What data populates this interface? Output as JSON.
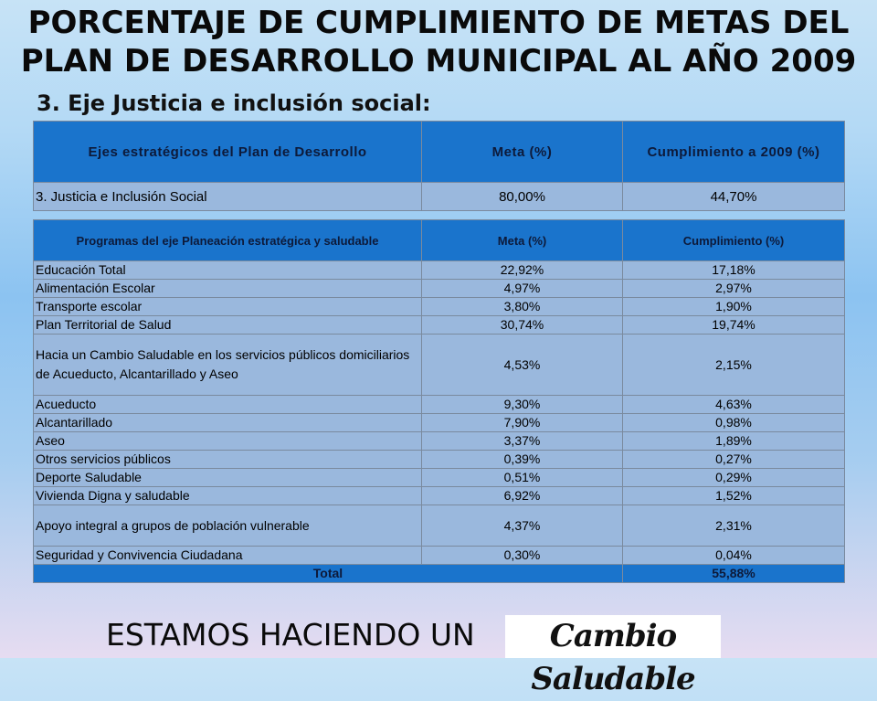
{
  "title_line1": "PORCENTAJE DE CUMPLIMIENTO DE METAS DEL",
  "title_line2": "PLAN DE DESARROLLO MUNICIPAL AL AÑO 2009",
  "subtitle": "3. Eje Justicia e inclusión social:",
  "summary_table": {
    "headers": [
      "Ejes estratégicos del Plan de Desarrollo",
      "Meta (%)",
      "Cumplimiento a 2009 (%)"
    ],
    "row": [
      "3. Justicia e Inclusión Social",
      "80,00%",
      "44,70%"
    ]
  },
  "programs_table": {
    "headers": [
      "Programas del eje Planeación estratégica y saludable",
      "Meta (%)",
      "Cumplimiento (%)"
    ],
    "rows": [
      [
        "Educación Total",
        "22,92%",
        "17,18%"
      ],
      [
        "Alimentación Escolar",
        "4,97%",
        "2,97%"
      ],
      [
        "Transporte escolar",
        "3,80%",
        "1,90%"
      ],
      [
        "Plan Territorial de Salud",
        "30,74%",
        "19,74%"
      ],
      [
        "Hacia un Cambio Saludable en los servicios públicos domiciliarios de Acueducto, Alcantarillado y Aseo",
        "4,53%",
        "2,15%"
      ],
      [
        "Acueducto",
        "9,30%",
        "4,63%"
      ],
      [
        "Alcantarillado",
        "7,90%",
        "0,98%"
      ],
      [
        "Aseo",
        "3,37%",
        "1,89%"
      ],
      [
        "Otros servicios públicos",
        "0,39%",
        "0,27%"
      ],
      [
        "Deporte Saludable",
        "0,51%",
        "0,29%"
      ],
      [
        "Vivienda Digna y saludable",
        "6,92%",
        "1,52%"
      ],
      [
        "Apoyo integral a grupos de población vulnerable",
        "4,37%",
        "2,31%"
      ],
      [
        "Seguridad y Convivencia Ciudadana",
        "0,30%",
        "0,04%"
      ]
    ],
    "total_label": "Total",
    "total_value": "55,88%"
  },
  "footer_text": "ESTAMOS HACIENDO UN",
  "logo_text": "Cambio Saludable"
}
